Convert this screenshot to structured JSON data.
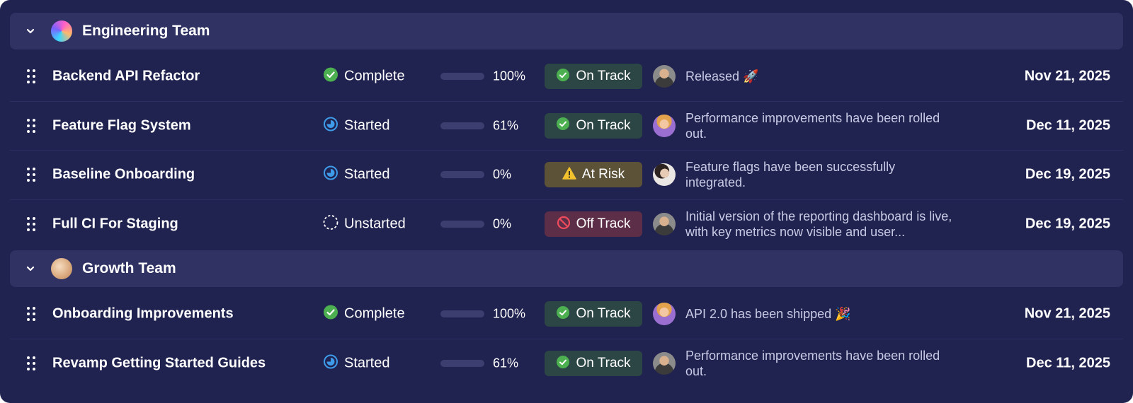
{
  "groups": [
    {
      "name": "Engineering Team",
      "icon": "gradient-orb-icon",
      "rows": [
        {
          "name": "Backend API Refactor",
          "status": "Complete",
          "status_icon": "check-circle-icon",
          "progress": 100,
          "progress_label": "100%",
          "health": "On Track",
          "health_type": "on",
          "avatar": "a",
          "note": "Released 🚀",
          "date": "Nov 21, 2025"
        },
        {
          "name": "Feature Flag System",
          "status": "Started",
          "status_icon": "in-progress-icon",
          "progress": 61,
          "progress_label": "61%",
          "health": "On Track",
          "health_type": "on",
          "avatar": "b",
          "note": "Performance improvements have been rolled out.",
          "date": "Dec 11, 2025"
        },
        {
          "name": "Baseline Onboarding",
          "status": "Started",
          "status_icon": "in-progress-icon",
          "progress": 0,
          "progress_label": "0%",
          "health": "At Risk",
          "health_type": "risk",
          "avatar": "c",
          "note": "Feature flags have been successfully integrated.",
          "date": "Dec 19, 2025"
        },
        {
          "name": "Full CI For Staging",
          "status": "Unstarted",
          "status_icon": "dashed-circle-icon",
          "progress": 0,
          "progress_label": "0%",
          "health": "Off Track",
          "health_type": "off",
          "avatar": "a",
          "note": "Initial version of the reporting dashboard is live, with key metrics now visible and user...",
          "date": "Dec 19, 2025"
        }
      ]
    },
    {
      "name": "Growth Team",
      "icon": "peach-orb-icon",
      "rows": [
        {
          "name": "Onboarding Improvements",
          "status": "Complete",
          "status_icon": "check-circle-icon",
          "progress": 100,
          "progress_label": "100%",
          "health": "On Track",
          "health_type": "on",
          "avatar": "b",
          "note": "API 2.0 has been shipped 🎉",
          "date": "Nov 21, 2025"
        },
        {
          "name": "Revamp Getting Started Guides",
          "status": "Started",
          "status_icon": "in-progress-icon",
          "progress": 61,
          "progress_label": "61%",
          "health": "On Track",
          "health_type": "on",
          "avatar": "a",
          "note": "Performance improvements have been rolled out.",
          "date": "Dec 11, 2025"
        }
      ]
    }
  ],
  "colors": {
    "panel_bg": "#20224f",
    "header_bg": "#2f3263",
    "progress_fill": "#5aa64a",
    "on_track_bg": "#2c4545",
    "at_risk_bg": "#5b5237",
    "off_track_bg": "#5c2e48",
    "check_green": "#4caf50",
    "started_blue": "#3d9be9",
    "warning_yellow": "#f2c12e",
    "off_red": "#f04b5c"
  }
}
